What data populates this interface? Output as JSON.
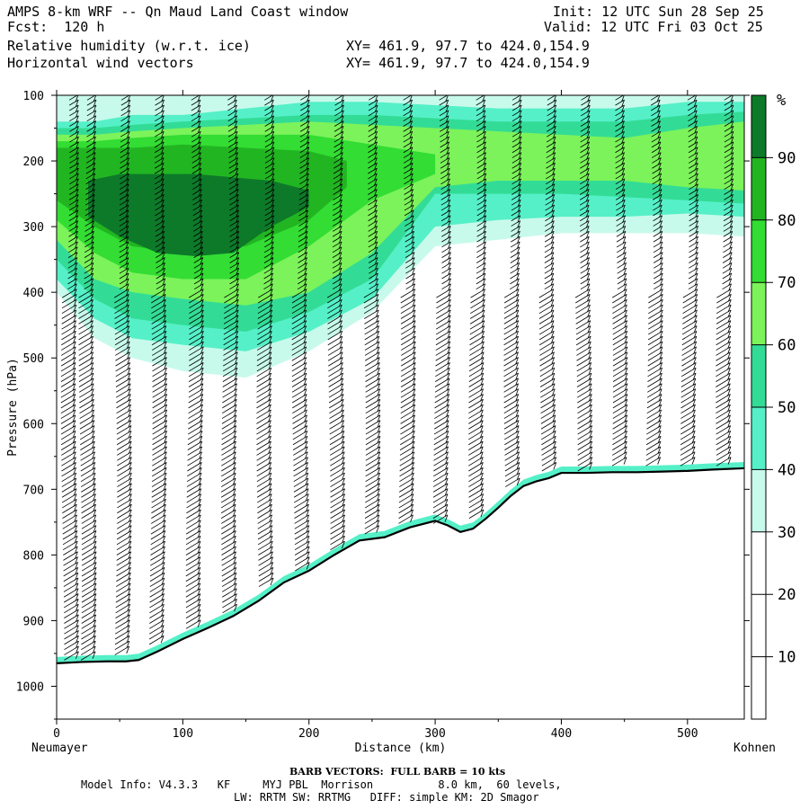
{
  "header": {
    "line1_left": "AMPS 8-km WRF -- Qn Maud Land Coast window",
    "line1_right": "Init: 12 UTC Sun 28 Sep 25",
    "line2_left": "Fcst:  120 h",
    "line2_right": "Valid: 12 UTC Fri 03 Oct 25",
    "line3_left": "Relative humidity (w.r.t. ice)",
    "line3_mid": "XY= 461.9, 97.7 to 424.0,154.9",
    "line4_left": "Horizontal wind vectors",
    "line4_mid": "XY= 461.9, 97.7 to 424.0,154.9"
  },
  "footer": {
    "barb_note": "BARB VECTORS:  FULL BARB = 10 kts",
    "model_info": "Model Info: V4.3.3   KF     MYJ PBL  Morrison          8.0 km,  60 levels,",
    "physics": "LW: RRTM SW: RRTMG   DIFF: simple KM: 2D Smagor"
  },
  "chart_data": {
    "type": "cross-section",
    "title": "Relative humidity (w.r.t. ice) and horizontal wind vectors",
    "xlabel": "Distance (km)",
    "ylabel": "Pressure (hPa)",
    "xlim": [
      0,
      545
    ],
    "ylim": [
      100,
      1050
    ],
    "xticks": [
      0,
      100,
      200,
      300,
      400,
      500
    ],
    "yticks": [
      100,
      200,
      300,
      400,
      500,
      600,
      700,
      800,
      900,
      1000
    ],
    "x_start_label": "Neumayer",
    "x_end_label": "Kohnen",
    "colorbar": {
      "unit": "%",
      "levels": [
        10,
        20,
        30,
        40,
        50,
        60,
        70,
        80,
        90
      ],
      "colors": [
        "#ffffff",
        "#ffffff",
        "#c8faeb",
        "#55f0c8",
        "#33dc96",
        "#7cf35a",
        "#33dd33",
        "#22b522",
        "#0d7a2a"
      ]
    },
    "terrain_profile": {
      "x": [
        0,
        20,
        40,
        55,
        65,
        80,
        100,
        120,
        140,
        160,
        180,
        200,
        220,
        240,
        260,
        280,
        300,
        310,
        320,
        330,
        340,
        350,
        360,
        370,
        380,
        390,
        400,
        420,
        440,
        460,
        480,
        500,
        520,
        545
      ],
      "p": [
        965,
        963,
        962,
        962,
        960,
        947,
        928,
        911,
        893,
        870,
        842,
        824,
        800,
        778,
        773,
        758,
        748,
        755,
        765,
        760,
        745,
        728,
        710,
        695,
        688,
        683,
        675,
        675,
        674,
        674,
        673,
        672,
        670,
        668
      ]
    },
    "rh_bands": [
      {
        "label": "30-40",
        "color": "#c8faeb",
        "x": [
          0,
          30,
          60,
          100,
          150,
          200,
          250,
          300,
          350,
          400,
          450,
          500,
          545
        ],
        "p_top": [
          100,
          100,
          100,
          100,
          100,
          100,
          100,
          100,
          100,
          100,
          100,
          100,
          100
        ],
        "p_bottom": [
          400,
          470,
          500,
          520,
          530,
          490,
          430,
          330,
          320,
          310,
          310,
          310,
          315
        ]
      },
      {
        "label": "40-50",
        "color": "#55f0c8",
        "x": [
          0,
          30,
          60,
          100,
          150,
          200,
          250,
          300,
          350,
          400,
          450,
          500,
          545
        ],
        "p_top": [
          140,
          140,
          130,
          130,
          120,
          110,
          110,
          115,
          120,
          120,
          120,
          110,
          110
        ],
        "p_bottom": [
          380,
          440,
          470,
          480,
          490,
          460,
          410,
          300,
          290,
          285,
          285,
          280,
          285
        ]
      },
      {
        "label": "50-60",
        "color": "#33dc96",
        "x": [
          0,
          30,
          60,
          100,
          150,
          200,
          250,
          300,
          350,
          400,
          450,
          500,
          545
        ],
        "p_top": [
          150,
          150,
          145,
          140,
          135,
          130,
          130,
          135,
          140,
          140,
          140,
          130,
          125
        ],
        "p_bottom": [
          350,
          410,
          440,
          450,
          460,
          430,
          380,
          250,
          250,
          250,
          255,
          260,
          265
        ]
      },
      {
        "label": "60-70",
        "color": "#7cf35a",
        "x": [
          0,
          30,
          60,
          100,
          150,
          200,
          250,
          300,
          350,
          400,
          450,
          500,
          545
        ],
        "p_top": [
          160,
          160,
          155,
          150,
          145,
          140,
          145,
          150,
          155,
          160,
          165,
          150,
          140
        ],
        "p_bottom": [
          320,
          380,
          400,
          410,
          420,
          400,
          340,
          240,
          230,
          230,
          230,
          240,
          245
        ]
      },
      {
        "label": "70-80",
        "color": "#33dd33",
        "x": [
          0,
          30,
          60,
          100,
          150,
          200,
          250,
          300
        ],
        "p_top": [
          170,
          170,
          165,
          160,
          160,
          160,
          175,
          190
        ],
        "p_bottom": [
          290,
          340,
          370,
          380,
          380,
          330,
          260,
          220
        ]
      },
      {
        "label": "80-90",
        "color": "#22b522",
        "x": [
          0,
          30,
          60,
          100,
          150,
          200,
          230
        ],
        "p_top": [
          180,
          180,
          180,
          175,
          180,
          185,
          200
        ],
        "p_bottom": [
          260,
          300,
          330,
          340,
          330,
          290,
          240
        ]
      },
      {
        "label": "90-100",
        "color": "#0d7a2a",
        "x": [
          25,
          50,
          80,
          110,
          140,
          170,
          200
        ],
        "p_top": [
          230,
          220,
          220,
          220,
          225,
          230,
          245
        ],
        "p_bottom": [
          285,
          315,
          340,
          345,
          340,
          300,
          270
        ]
      }
    ],
    "barb_columns_km": [
      14,
      28,
      56,
      84,
      113,
      141,
      169,
      197,
      225,
      253,
      281,
      309,
      337,
      365,
      393,
      421,
      449,
      477,
      505,
      533
    ],
    "barb_note": "FULL BARB = 10 kts"
  }
}
